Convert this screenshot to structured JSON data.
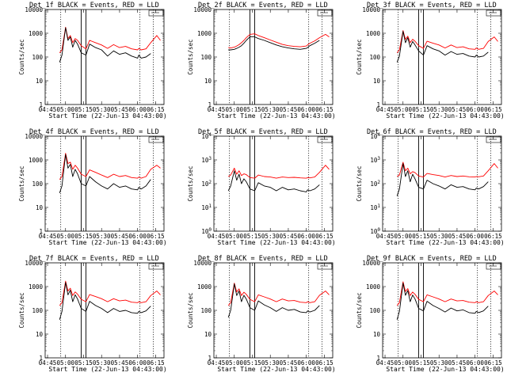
{
  "chart_data": {
    "type": "line",
    "layout": "3x3 grid of panels",
    "yscale": "log",
    "shared_x": {
      "ticks": [
        "04:45",
        "05:00",
        "05:15",
        "05:30",
        "05:45",
        "06:00",
        "06:15"
      ],
      "xlabel": "Start Time (22-Jun-13 04:43:00)",
      "xlim": [
        "04:43",
        "06:22"
      ]
    },
    "ylabel": "Counts/sec",
    "ylim": [
      1,
      10000
    ],
    "legend_box": "top-right",
    "colors": {
      "events": "#000000",
      "lld": "#ff0000"
    },
    "series_legend": [
      "BLACK = Events",
      "RED = LLD"
    ],
    "vlines": {
      "dotted": [
        "04:56",
        "06:02",
        "06:13"
      ],
      "solid": [
        "05:13",
        "05:17"
      ]
    },
    "panels": [
      {
        "title": "Det_1f BLACK = Events, RED = LLD",
        "ytick_style": "plain",
        "yticks": [
          "1",
          "10",
          "100",
          "1000",
          "10000"
        ],
        "x": [
          "04:55",
          "04:57",
          "05:00",
          "05:02",
          "05:04",
          "05:06",
          "05:08",
          "05:10",
          "05:13",
          "05:17",
          "05:20",
          "05:25",
          "05:30",
          "05:35",
          "05:40",
          "05:45",
          "05:50",
          "05:55",
          "06:00",
          "06:01",
          "06:03",
          "06:07",
          "06:11",
          "06:16",
          "06:19"
        ],
        "events": [
          60,
          120,
          1700,
          500,
          700,
          260,
          500,
          350,
          150,
          120,
          350,
          250,
          200,
          110,
          180,
          130,
          150,
          110,
          90,
          120,
          90,
          100,
          140,
          null,
          null
        ],
        "lld": [
          150,
          200,
          1800,
          600,
          800,
          400,
          600,
          500,
          300,
          220,
          500,
          400,
          320,
          230,
          330,
          250,
          280,
          220,
          200,
          230,
          200,
          220,
          400,
          800,
          500
        ]
      },
      {
        "title": "Det_2f BLACK = Events, RED = LLD",
        "ytick_style": "plain",
        "yticks": [
          "1",
          "10",
          "100",
          "1000",
          "10000"
        ],
        "x": [
          "04:55",
          "04:57",
          "05:00",
          "05:02",
          "05:04",
          "05:06",
          "05:08",
          "05:10",
          "05:13",
          "05:17",
          "05:20",
          "05:25",
          "05:30",
          "05:35",
          "05:40",
          "05:45",
          "05:50",
          "05:55",
          "06:00",
          "06:01",
          "06:03",
          "06:07",
          "06:11",
          "06:16",
          "06:19"
        ],
        "events": [
          200,
          200,
          210,
          230,
          260,
          300,
          380,
          500,
          700,
          700,
          600,
          500,
          400,
          320,
          270,
          240,
          220,
          210,
          230,
          250,
          300,
          380,
          500,
          null,
          null
        ],
        "lld": [
          250,
          240,
          260,
          290,
          330,
          400,
          500,
          650,
          900,
          950,
          800,
          650,
          520,
          420,
          340,
          300,
          280,
          270,
          290,
          320,
          380,
          480,
          650,
          900,
          700
        ]
      },
      {
        "title": "Det_3f BLACK = Events, RED = LLD",
        "ytick_style": "plain",
        "yticks": [
          "1",
          "10",
          "100",
          "1000",
          "10000"
        ],
        "x": [
          "04:55",
          "04:57",
          "05:00",
          "05:02",
          "05:04",
          "05:06",
          "05:08",
          "05:10",
          "05:13",
          "05:17",
          "05:20",
          "05:25",
          "05:30",
          "05:35",
          "05:40",
          "05:45",
          "05:50",
          "05:55",
          "06:00",
          "06:01",
          "06:03",
          "06:07",
          "06:11",
          "06:16",
          "06:19"
        ],
        "events": [
          60,
          110,
          1200,
          400,
          650,
          260,
          450,
          320,
          180,
          120,
          300,
          220,
          180,
          120,
          170,
          130,
          140,
          110,
          100,
          120,
          100,
          110,
          160,
          null,
          null
        ],
        "lld": [
          150,
          200,
          1300,
          550,
          750,
          400,
          560,
          460,
          300,
          230,
          460,
          380,
          320,
          240,
          320,
          250,
          270,
          220,
          210,
          240,
          210,
          230,
          450,
          700,
          450
        ]
      },
      {
        "title": "Det_4f BLACK = Events, RED = LLD",
        "ytick_style": "plain",
        "yticks": [
          "1",
          "10",
          "100",
          "1000",
          "10000"
        ],
        "x": [
          "04:55",
          "04:57",
          "05:00",
          "05:02",
          "05:04",
          "05:06",
          "05:08",
          "05:10",
          "05:13",
          "05:17",
          "05:20",
          "05:25",
          "05:30",
          "05:35",
          "05:40",
          "05:45",
          "05:50",
          "05:55",
          "06:00",
          "06:01",
          "06:03",
          "06:07",
          "06:11",
          "06:16",
          "06:19"
        ],
        "events": [
          40,
          80,
          1700,
          450,
          650,
          200,
          400,
          260,
          100,
          80,
          200,
          120,
          80,
          60,
          100,
          70,
          80,
          60,
          55,
          70,
          60,
          80,
          150,
          null,
          null
        ],
        "lld": [
          150,
          200,
          1900,
          700,
          800,
          400,
          600,
          450,
          250,
          200,
          380,
          300,
          230,
          180,
          250,
          200,
          220,
          180,
          170,
          190,
          170,
          200,
          400,
          600,
          450
        ]
      },
      {
        "title": "Det_5f BLACK = Events, RED = LLD",
        "ytick_style": "exp",
        "yticks": [
          "10^0",
          "10^1",
          "10^2",
          "10^3",
          "10^4"
        ],
        "x": [
          "04:55",
          "04:57",
          "05:00",
          "05:02",
          "05:04",
          "05:06",
          "05:08",
          "05:10",
          "05:13",
          "05:17",
          "05:20",
          "05:25",
          "05:30",
          "05:35",
          "05:40",
          "05:45",
          "05:50",
          "05:55",
          "06:00",
          "06:01",
          "06:03",
          "06:07",
          "06:11",
          "06:16",
          "06:19"
        ],
        "events": [
          50,
          80,
          350,
          140,
          250,
          100,
          160,
          120,
          60,
          50,
          110,
          80,
          70,
          50,
          70,
          55,
          60,
          50,
          45,
          55,
          50,
          60,
          90,
          null,
          null
        ],
        "lld": [
          200,
          230,
          450,
          250,
          350,
          220,
          260,
          240,
          180,
          170,
          230,
          200,
          190,
          170,
          190,
          180,
          185,
          175,
          170,
          180,
          175,
          190,
          300,
          600,
          400
        ]
      },
      {
        "title": "Det_6f BLACK = Events, RED = LLD",
        "ytick_style": "exp",
        "yticks": [
          "10^0",
          "10^1",
          "10^2",
          "10^3",
          "10^4"
        ],
        "x": [
          "04:55",
          "04:57",
          "05:00",
          "05:02",
          "05:04",
          "05:06",
          "05:08",
          "05:10",
          "05:13",
          "05:17",
          "05:20",
          "05:25",
          "05:30",
          "05:35",
          "05:40",
          "05:45",
          "05:50",
          "05:55",
          "06:00",
          "06:01",
          "06:03",
          "06:07",
          "06:11",
          "06:16",
          "06:19"
        ],
        "events": [
          30,
          60,
          700,
          200,
          350,
          120,
          250,
          160,
          70,
          60,
          140,
          100,
          80,
          60,
          90,
          70,
          75,
          60,
          55,
          65,
          60,
          75,
          120,
          null,
          null
        ],
        "lld": [
          200,
          230,
          800,
          350,
          450,
          260,
          320,
          290,
          210,
          190,
          270,
          240,
          220,
          190,
          220,
          200,
          210,
          195,
          190,
          200,
          195,
          210,
          350,
          700,
          450
        ]
      },
      {
        "title": "Det_7f BLACK = Events, RED = LLD",
        "ytick_style": "plain",
        "yticks": [
          "1",
          "10",
          "100",
          "1000",
          "10000"
        ],
        "x": [
          "04:55",
          "04:57",
          "05:00",
          "05:02",
          "05:04",
          "05:06",
          "05:08",
          "05:10",
          "05:13",
          "05:17",
          "05:20",
          "05:25",
          "05:30",
          "05:35",
          "05:40",
          "05:45",
          "05:50",
          "05:55",
          "06:00",
          "06:01",
          "06:03",
          "06:07",
          "06:11",
          "06:16",
          "06:19"
        ],
        "events": [
          40,
          90,
          1500,
          450,
          700,
          230,
          450,
          300,
          120,
          90,
          240,
          160,
          120,
          80,
          120,
          90,
          100,
          80,
          75,
          90,
          80,
          95,
          150,
          null,
          null
        ],
        "lld": [
          160,
          210,
          1700,
          650,
          850,
          420,
          600,
          480,
          290,
          230,
          460,
          380,
          310,
          230,
          310,
          250,
          270,
          220,
          210,
          230,
          210,
          230,
          420,
          650,
          450
        ]
      },
      {
        "title": "Det_8f BLACK = Events, RED = LLD",
        "ytick_style": "plain",
        "yticks": [
          "1",
          "10",
          "100",
          "1000",
          "10000"
        ],
        "x": [
          "04:55",
          "04:57",
          "05:00",
          "05:02",
          "05:04",
          "05:06",
          "05:08",
          "05:10",
          "05:13",
          "05:17",
          "05:20",
          "05:25",
          "05:30",
          "05:35",
          "05:40",
          "05:45",
          "05:50",
          "05:55",
          "06:00",
          "06:01",
          "06:03",
          "06:07",
          "06:11",
          "06:16",
          "06:19"
        ],
        "events": [
          50,
          100,
          1300,
          420,
          650,
          230,
          430,
          300,
          130,
          100,
          250,
          170,
          130,
          90,
          130,
          100,
          110,
          85,
          80,
          95,
          85,
          100,
          160,
          null,
          null
        ],
        "lld": [
          160,
          210,
          1400,
          600,
          800,
          420,
          580,
          470,
          290,
          230,
          450,
          370,
          300,
          230,
          300,
          250,
          260,
          220,
          210,
          230,
          210,
          230,
          430,
          650,
          450
        ]
      },
      {
        "title": "Det_9f BLACK = Events, RED = LLD",
        "ytick_style": "plain",
        "yticks": [
          "1",
          "10",
          "100",
          "1000",
          "10000"
        ],
        "x": [
          "04:55",
          "04:57",
          "05:00",
          "05:02",
          "05:04",
          "05:06",
          "05:08",
          "05:10",
          "05:13",
          "05:17",
          "05:20",
          "05:25",
          "05:30",
          "05:35",
          "05:40",
          "05:45",
          "05:50",
          "05:55",
          "06:00",
          "06:01",
          "06:03",
          "06:07",
          "06:11",
          "06:16",
          "06:19"
        ],
        "events": [
          40,
          90,
          1400,
          430,
          680,
          230,
          440,
          300,
          120,
          95,
          240,
          160,
          120,
          85,
          125,
          95,
          105,
          80,
          75,
          90,
          80,
          95,
          150,
          null,
          null
        ],
        "lld": [
          160,
          210,
          1600,
          620,
          820,
          420,
          590,
          470,
          290,
          230,
          450,
          370,
          300,
          230,
          300,
          250,
          260,
          220,
          210,
          230,
          210,
          230,
          420,
          650,
          450
        ]
      }
    ]
  }
}
